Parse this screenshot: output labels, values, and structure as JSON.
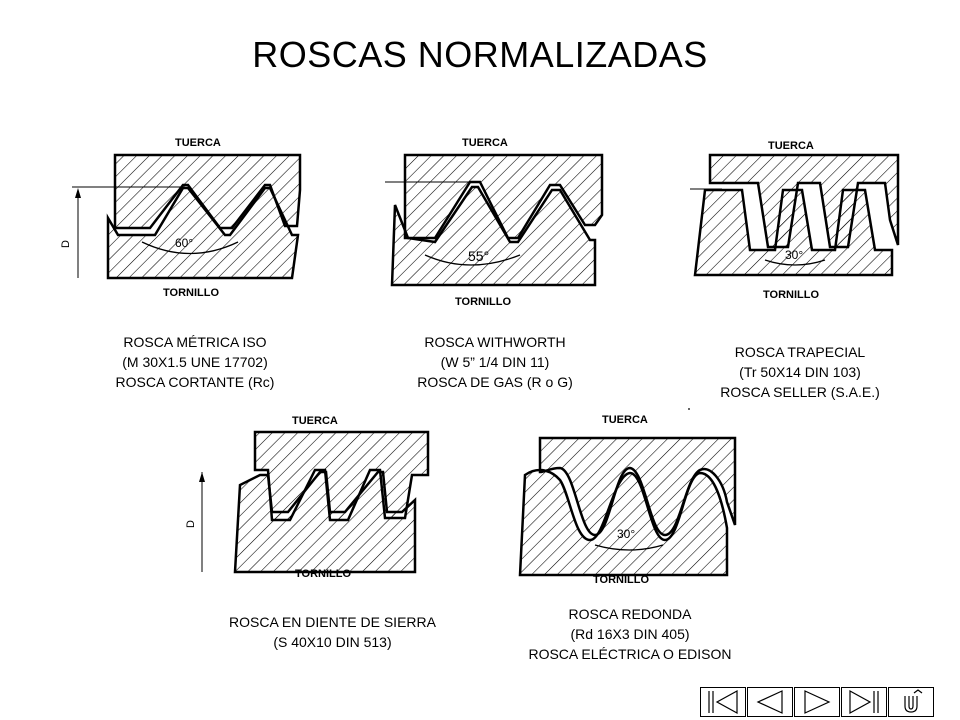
{
  "title": "ROSCAS NORMALIZADAS",
  "labels": {
    "nut": "TUERCA",
    "screw": "TORNILLO",
    "diameter": "D"
  },
  "threads": [
    {
      "angle": "60°",
      "caption": [
        "ROSCA MÉTRICA ISO",
        "(M 30X1.5 UNE 17702)",
        "ROSCA CORTANTE (Rc)"
      ]
    },
    {
      "angle": "55°",
      "caption": [
        "ROSCA WITHWORTH",
        "(W 5” 1/4 DIN 11)",
        "ROSCA DE GAS (R o G)"
      ]
    },
    {
      "angle": "30°",
      "caption": [
        "ROSCA TRAPECIAL",
        "(Tr 50X14 DIN 103)",
        "ROSCA SELLER (S.A.E.)"
      ]
    },
    {
      "angle": "",
      "caption": [
        "ROSCA EN DIENTE DE SIERRA",
        "(S 40X10 DIN 513)"
      ]
    },
    {
      "angle": "30°",
      "caption": [
        "ROSCA REDONDA",
        "(Rd 16X3 DIN 405)",
        "ROSCA ELÉCTRICA O EDISON"
      ]
    }
  ],
  "navigation": [
    {
      "icon": "first-slide-icon"
    },
    {
      "icon": "previous-slide-icon"
    },
    {
      "icon": "next-slide-icon"
    },
    {
      "icon": "last-slide-icon"
    },
    {
      "icon": "return-icon"
    }
  ]
}
